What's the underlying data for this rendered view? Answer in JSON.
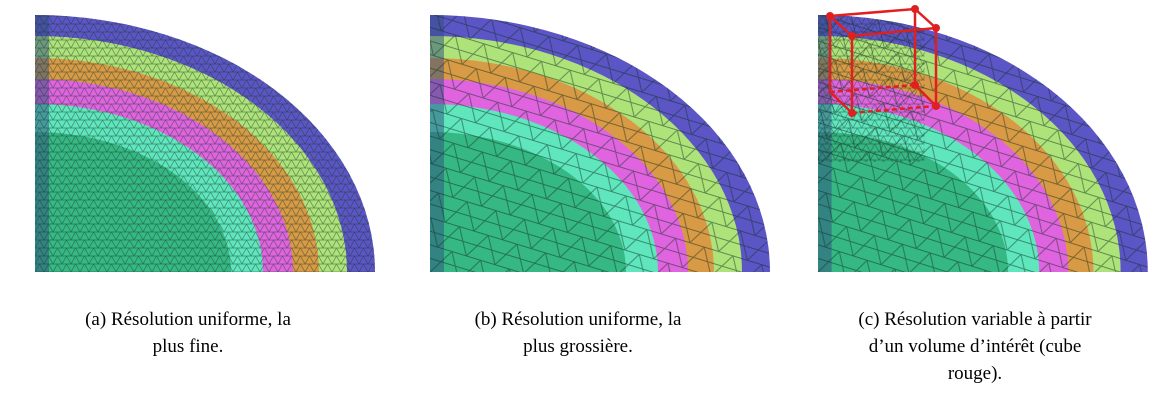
{
  "figures": [
    {
      "caption_lines": [
        "(a) Résolution uniforme, la",
        "plus fine."
      ]
    },
    {
      "caption_lines": [
        "(b) Résolution uniforme, la",
        "plus grossière."
      ]
    },
    {
      "caption_lines": [
        "(c) Résolution variable à partir",
        "d’un volume d’intérêt (cube",
        "rouge)."
      ]
    }
  ]
}
